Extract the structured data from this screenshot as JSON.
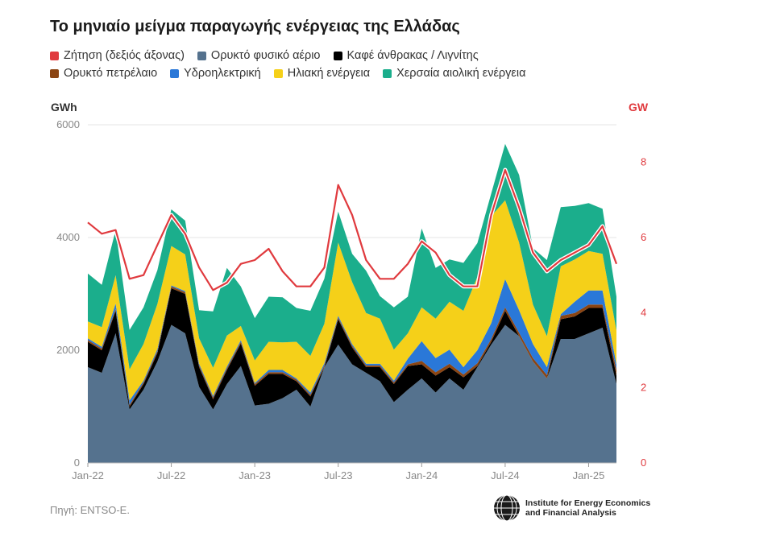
{
  "title": "Το μηνιαίο μείγμα παραγωγής ενέργειας της Ελλάδας",
  "legend_rows": [
    [
      {
        "label": "Ζήτηση (δεξιός άξονας)",
        "color": "#e03a3e"
      },
      {
        "label": "Ορυκτό φυσικό αέριο",
        "color": "#55728e"
      },
      {
        "label": "Καφέ άνθρακας / Λιγνίτης",
        "color": "#000000"
      }
    ],
    [
      {
        "label": "Ορυκτό πετρέλαιο",
        "color": "#8b4513"
      },
      {
        "label": "Υδροηλεκτρική",
        "color": "#2a78d8"
      },
      {
        "label": "Ηλιακή ενέργεια",
        "color": "#f5d019"
      },
      {
        "label": "Χερσαία αιολική ενέργεια",
        "color": "#1bae8c"
      }
    ]
  ],
  "left_axis_unit": "GWh",
  "right_axis_unit": "GW",
  "source": "Πηγή: ENTSO-E.",
  "logo_text_line1": "Institute for Energy Economics",
  "logo_text_line2": "and Financial Analysis",
  "chart_data": {
    "type": "area",
    "stacked": true,
    "x": [
      "2022-01",
      "2022-02",
      "2022-03",
      "2022-04",
      "2022-05",
      "2022-06",
      "2022-07",
      "2022-08",
      "2022-09",
      "2022-10",
      "2022-11",
      "2022-12",
      "2023-01",
      "2023-02",
      "2023-03",
      "2023-04",
      "2023-05",
      "2023-06",
      "2023-07",
      "2023-08",
      "2023-09",
      "2023-10",
      "2023-11",
      "2023-12",
      "2024-01",
      "2024-02",
      "2024-03",
      "2024-04",
      "2024-05",
      "2024-06",
      "2024-07",
      "2024-08",
      "2024-09",
      "2024-10",
      "2024-11",
      "2024-12",
      "2025-01",
      "2025-02",
      "2025-03"
    ],
    "x_tick_labels": [
      "Jan-22",
      "Jul-22",
      "Jan-23",
      "Jul-23",
      "Jan-24",
      "Jul-24",
      "Jan-25"
    ],
    "x_tick_index": [
      0,
      6,
      12,
      18,
      24,
      30,
      36
    ],
    "ylim_left": [
      0,
      6000
    ],
    "yticks_left": [
      0,
      2000,
      4000,
      6000
    ],
    "ylim_right": [
      0,
      9
    ],
    "yticks_right": [
      0,
      2,
      4,
      6,
      8
    ],
    "grid": true,
    "series": [
      {
        "name": "Ορυκτό φυσικό αέριο",
        "color": "#55728e",
        "values": [
          1700,
          1600,
          2300,
          950,
          1300,
          1800,
          2450,
          2300,
          1350,
          950,
          1400,
          1720,
          1020,
          1050,
          1150,
          1300,
          1000,
          1700,
          2100,
          1750,
          1600,
          1450,
          1080,
          1300,
          1500,
          1250,
          1500,
          1300,
          1700,
          2100,
          2450,
          2250,
          1800,
          1500,
          2200,
          2200,
          2300,
          2400,
          1400
        ]
      },
      {
        "name": "Καφέ άνθρακας / Λιγνίτης",
        "color": "#000000",
        "values": [
          450,
          400,
          400,
          50,
          100,
          150,
          650,
          700,
          350,
          180,
          250,
          400,
          350,
          530,
          430,
          150,
          180,
          0,
          450,
          300,
          100,
          250,
          320,
          420,
          250,
          300,
          200,
          220,
          20,
          50,
          250,
          0,
          0,
          0,
          350,
          400,
          450,
          350,
          150
        ]
      },
      {
        "name": "Ορυκτό πετρέλαιο",
        "color": "#8b4513",
        "values": [
          30,
          30,
          30,
          30,
          30,
          30,
          30,
          30,
          30,
          30,
          30,
          30,
          30,
          30,
          30,
          30,
          30,
          30,
          30,
          30,
          30,
          30,
          30,
          30,
          60,
          60,
          60,
          50,
          50,
          50,
          60,
          60,
          60,
          60,
          60,
          60,
          60,
          60,
          100
        ]
      },
      {
        "name": "Υδροηλεκτρική",
        "color": "#2a78d8",
        "values": [
          30,
          30,
          100,
          80,
          30,
          40,
          20,
          20,
          30,
          30,
          30,
          30,
          20,
          40,
          40,
          20,
          40,
          40,
          30,
          30,
          30,
          30,
          30,
          100,
          350,
          250,
          250,
          130,
          230,
          280,
          500,
          400,
          250,
          140,
          30,
          200,
          250,
          250,
          100
        ]
      },
      {
        "name": "Ηλιακή ενέργεια",
        "color": "#f5d019",
        "values": [
          300,
          350,
          500,
          550,
          650,
          800,
          700,
          650,
          450,
          500,
          550,
          250,
          400,
          500,
          490,
          650,
          650,
          700,
          1300,
          1100,
          900,
          800,
          550,
          450,
          600,
          700,
          850,
          1000,
          1300,
          1900,
          1400,
          1200,
          700,
          550,
          850,
          750,
          700,
          650,
          600
        ]
      },
      {
        "name": "Χερσαία αιολική ενέργεια",
        "color": "#1bae8c",
        "values": [
          850,
          750,
          800,
          700,
          650,
          600,
          650,
          600,
          500,
          1000,
          1200,
          700,
          750,
          800,
          800,
          600,
          800,
          800,
          550,
          500,
          750,
          400,
          750,
          650,
          1400,
          900,
          750,
          850,
          600,
          400,
          1000,
          1200,
          1000,
          1350,
          1050,
          950,
          850,
          800,
          600
        ]
      },
      {
        "name": "Ζήτηση (δεξιός άξονας)",
        "color": "#e03a3e",
        "axis": "right",
        "type": "line",
        "values": [
          6.4,
          6.1,
          6.2,
          4.9,
          5.0,
          5.8,
          6.6,
          6.1,
          5.2,
          4.6,
          4.8,
          5.3,
          5.4,
          5.7,
          5.1,
          4.7,
          4.7,
          5.2,
          7.4,
          6.6,
          5.4,
          4.9,
          4.9,
          5.3,
          5.9,
          5.6,
          5.0,
          4.7,
          4.7,
          6.6,
          7.8,
          6.8,
          5.6,
          5.1,
          5.4,
          5.6,
          5.8,
          6.3,
          5.3
        ]
      }
    ]
  }
}
